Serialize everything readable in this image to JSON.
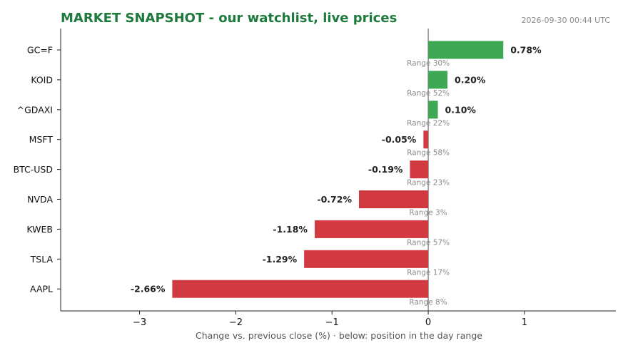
{
  "header": {
    "title": "MARKET SNAPSHOT - our watchlist, live prices",
    "timestamp": "2026-09-30 00:44 UTC"
  },
  "colors": {
    "title": "#1e7a3c",
    "positive": "#3fa854",
    "negative": "#d23a42",
    "axis": "#222222",
    "zero_line": "#555555"
  },
  "chart_data": {
    "type": "bar",
    "orientation": "horizontal",
    "title": "MARKET SNAPSHOT - our watchlist, live prices",
    "xlabel": "Change vs. previous close (%)  ·  below: position in the day range",
    "ylabel": "",
    "xlim": [
      -3.82,
      1.95
    ],
    "xticks": [
      -3,
      -2,
      -1,
      0,
      1
    ],
    "xtick_labels": [
      "−3",
      "−2",
      "−1",
      "0",
      "1"
    ],
    "categories": [
      "GC=F",
      "KOID",
      "^GDAXI",
      "MSFT",
      "BTC-USD",
      "NVDA",
      "KWEB",
      "TSLA",
      "AAPL"
    ],
    "values": [
      0.78,
      0.2,
      0.1,
      -0.05,
      -0.19,
      -0.72,
      -1.18,
      -1.29,
      -2.66
    ],
    "value_labels": [
      "0.78%",
      "0.20%",
      "0.10%",
      "-0.05%",
      "-0.19%",
      "-0.72%",
      "-1.18%",
      "-1.29%",
      "-2.66%"
    ],
    "range_labels": [
      "Range 30%",
      "Range 52%",
      "Range 22%",
      "Range 58%",
      "Range 23%",
      "Range 3%",
      "Range 57%",
      "Range 17%",
      "Range 8%"
    ],
    "grid": false,
    "legend": "none"
  }
}
